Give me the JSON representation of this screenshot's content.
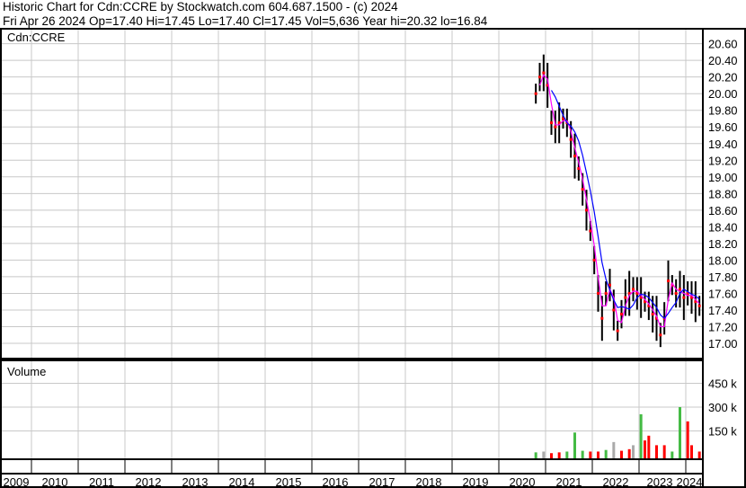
{
  "header": {
    "line1": "Historic Chart for Cdn:CCRE by Stockwatch.com 604.687.1500 - (c) 2024",
    "line2": "Fri Apr 26 2024  Op=17.40  Hi=17.45  Lo=17.40  Cl=17.45  Vol=5,636  Year hi=20.32  lo=16.84"
  },
  "chart_data": [
    {
      "type": "line",
      "title": "Cdn:CCRE",
      "ylim": [
        16.84,
        20.66
      ],
      "yticks": [
        "20.60",
        "20.40",
        "20.20",
        "20.00",
        "19.80",
        "19.60",
        "19.40",
        "19.20",
        "19.00",
        "18.80",
        "18.60",
        "18.40",
        "18.20",
        "18.00",
        "17.80",
        "17.60",
        "17.40",
        "17.20",
        "17.00"
      ],
      "series": [
        {
          "x": [
            "2020-10",
            "2020-11",
            "2020-12",
            "2021-01",
            "2021-02",
            "2021-03",
            "2021-04",
            "2021-05",
            "2021-06",
            "2021-07",
            "2021-08",
            "2021-09",
            "2021-10",
            "2021-11",
            "2021-12",
            "2022-01",
            "2022-02",
            "2022-03",
            "2022-04",
            "2022-05",
            "2022-06",
            "2022-07",
            "2022-08",
            "2022-09",
            "2022-10",
            "2022-11",
            "2022-12",
            "2023-01",
            "2023-02",
            "2023-03",
            "2023-04",
            "2023-05",
            "2023-06",
            "2023-07",
            "2023-08",
            "2023-09",
            "2023-10",
            "2023-11",
            "2023-12",
            "2024-01",
            "2024-02",
            "2024-03",
            "2024-04"
          ],
          "values": [
            20.0,
            20.2,
            20.25,
            20.1,
            19.65,
            19.6,
            19.65,
            19.7,
            19.65,
            19.45,
            19.25,
            19.1,
            18.85,
            18.6,
            18.35,
            18.0,
            17.6,
            17.3,
            17.6,
            17.7,
            17.4,
            17.15,
            17.35,
            17.55,
            17.6,
            17.65,
            17.6,
            17.55,
            17.5,
            17.45,
            17.35,
            17.3,
            17.1,
            17.3,
            17.75,
            17.7,
            17.6,
            17.65,
            17.55,
            17.6,
            17.55,
            17.5,
            17.45
          ]
        }
      ],
      "colors": {
        "price": "#000000",
        "close": "#ff0000",
        "ma_short": "#ff00ff",
        "ma_long": "#0000ff"
      }
    },
    {
      "type": "bar",
      "title": "Volume",
      "yticks": [
        "450 k",
        "300 k",
        "150 k"
      ],
      "ylim": [
        0,
        600000
      ],
      "x": [
        "2020-10",
        "2020-12",
        "2021-02",
        "2021-04",
        "2021-06",
        "2021-08",
        "2021-10",
        "2021-12",
        "2022-02",
        "2022-04",
        "2022-06",
        "2022-08",
        "2022-10",
        "2022-11",
        "2023-01",
        "2023-02",
        "2023-03",
        "2023-05",
        "2023-07",
        "2023-09",
        "2023-11",
        "2024-01",
        "2024-02",
        "2024-04"
      ],
      "values": [
        15000,
        20000,
        10000,
        15000,
        20000,
        140000,
        25000,
        20000,
        20000,
        30000,
        80000,
        25000,
        35000,
        60000,
        255000,
        90000,
        120000,
        60000,
        60000,
        20000,
        300000,
        210000,
        60000,
        20000
      ],
      "bar_colors": [
        "green",
        "gray",
        "red",
        "red",
        "green",
        "green",
        "green",
        "red",
        "red",
        "green",
        "gray",
        "red",
        "red",
        "gray",
        "green",
        "red",
        "red",
        "red",
        "red",
        "green",
        "green",
        "red",
        "red",
        "red"
      ],
      "colors": {
        "green": "#44bb44",
        "red": "#ff0000",
        "gray": "#aaaaaa"
      }
    }
  ],
  "x_axis": {
    "years": [
      "2009",
      "2010",
      "2011",
      "2012",
      "2013",
      "2014",
      "2015",
      "2016",
      "2017",
      "2018",
      "2019",
      "2020",
      "2021",
      "2022",
      "2023",
      "2024"
    ]
  }
}
